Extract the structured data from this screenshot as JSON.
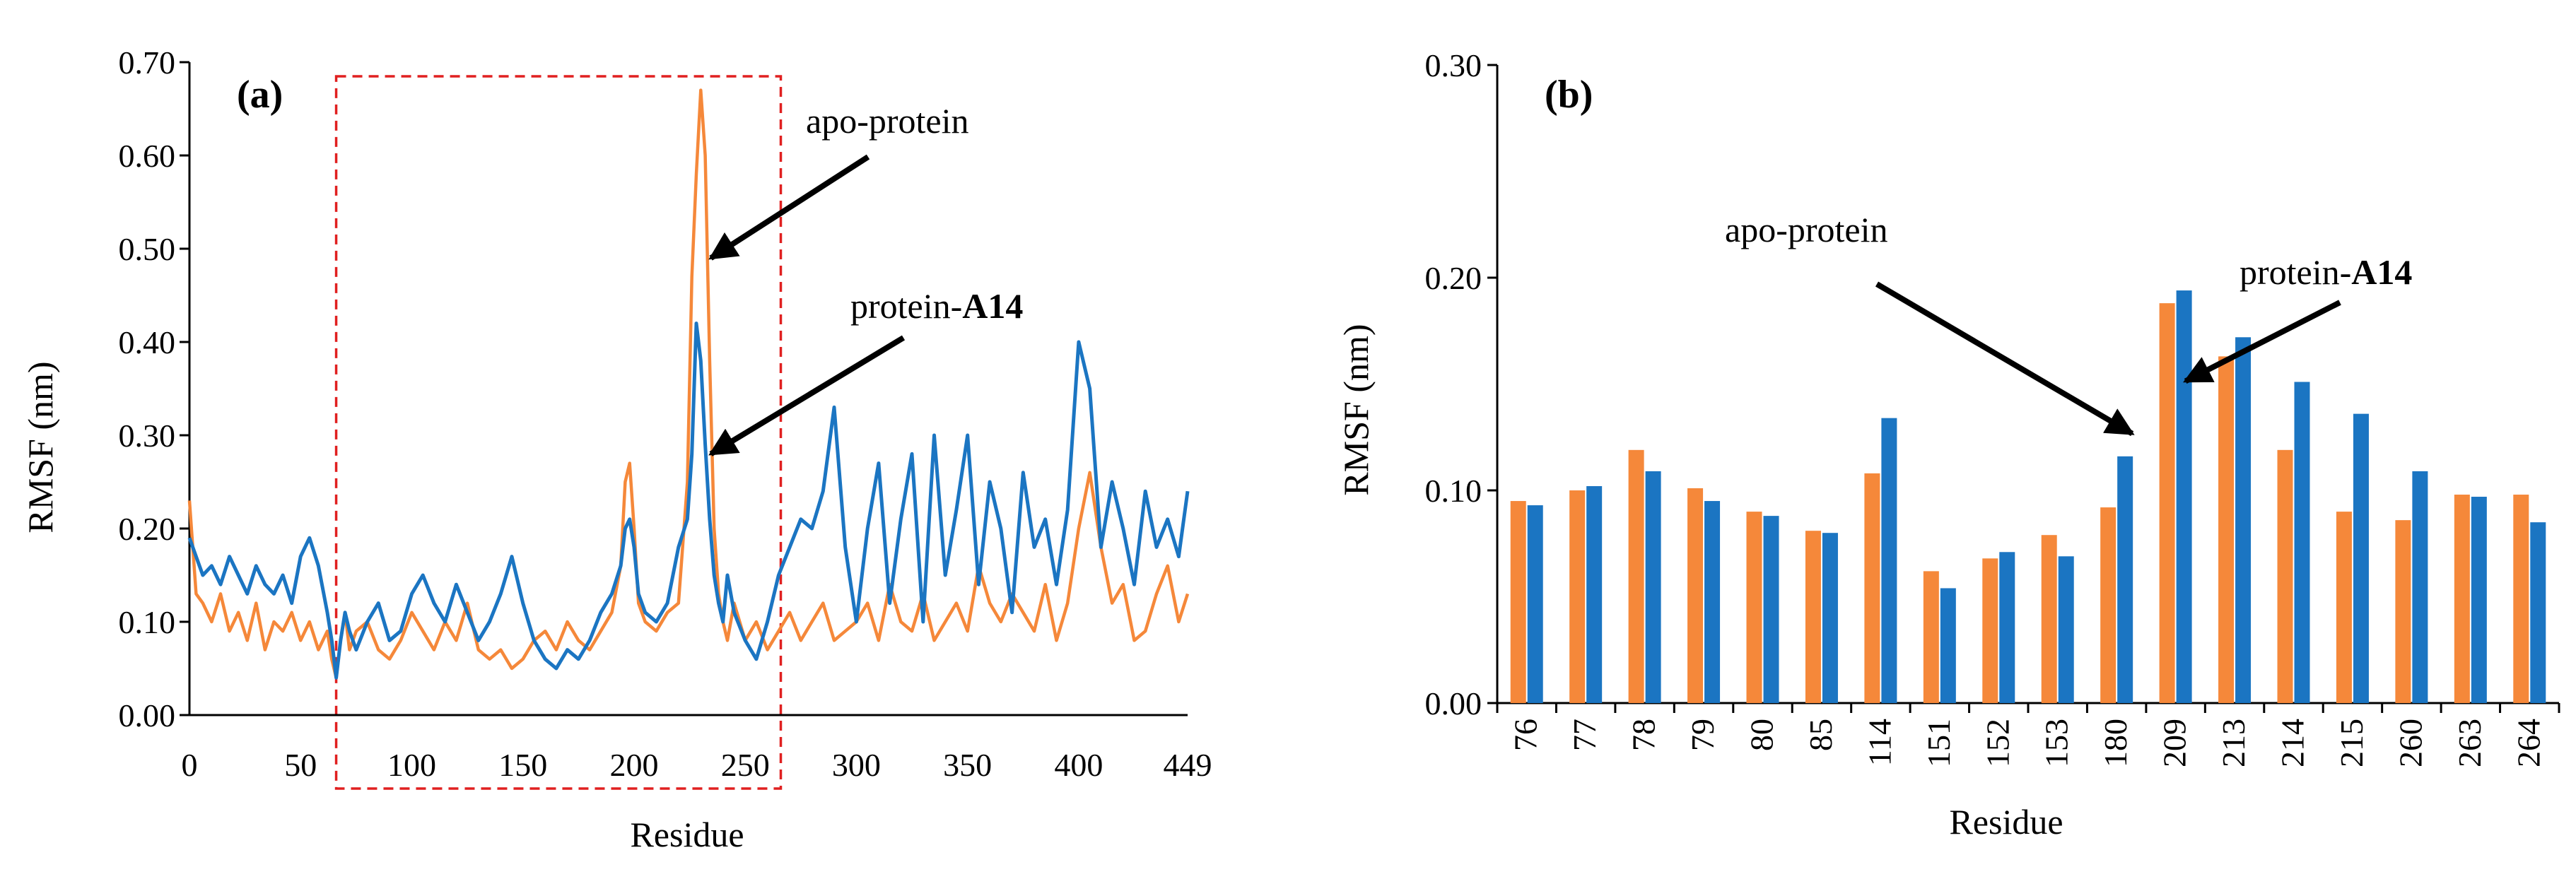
{
  "colors": {
    "apo": "#F5883A",
    "a14": "#1B75C2",
    "highlight": "#E02020",
    "axis": "#000000"
  },
  "chart_data": [
    {
      "type": "line",
      "panel_label": "(a)",
      "xlabel": "Residue",
      "ylabel": "RMSF (nm)",
      "xlim": [
        0,
        449
      ],
      "ylim": [
        0,
        0.7
      ],
      "x_ticks": [
        0,
        50,
        100,
        150,
        200,
        250,
        300,
        350,
        400,
        449
      ],
      "y_ticks": [
        "0.00",
        "0.10",
        "0.20",
        "0.30",
        "0.40",
        "0.50",
        "0.60",
        "0.70"
      ],
      "highlight_range": [
        66,
        266
      ],
      "series": [
        {
          "name": "apo-protein",
          "color_key": "apo",
          "x": [
            0,
            3,
            6,
            10,
            14,
            18,
            22,
            26,
            30,
            34,
            38,
            42,
            46,
            50,
            54,
            58,
            62,
            64,
            66,
            68,
            70,
            72,
            75,
            80,
            85,
            90,
            95,
            100,
            105,
            110,
            115,
            120,
            125,
            130,
            135,
            140,
            145,
            150,
            155,
            160,
            165,
            170,
            175,
            180,
            185,
            190,
            194,
            196,
            198,
            200,
            202,
            205,
            210,
            215,
            220,
            224,
            226,
            228,
            230,
            232,
            234,
            236,
            238,
            240,
            242,
            245,
            250,
            255,
            260,
            265,
            270,
            275,
            280,
            285,
            290,
            295,
            300,
            305,
            310,
            315,
            320,
            325,
            330,
            335,
            340,
            345,
            350,
            355,
            360,
            365,
            370,
            375,
            380,
            385,
            390,
            395,
            400,
            405,
            410,
            415,
            420,
            425,
            430,
            435,
            440,
            445,
            449
          ],
          "y": [
            0.23,
            0.13,
            0.12,
            0.1,
            0.13,
            0.09,
            0.11,
            0.08,
            0.12,
            0.07,
            0.1,
            0.09,
            0.11,
            0.08,
            0.1,
            0.07,
            0.09,
            0.06,
            0.04,
            0.08,
            0.11,
            0.07,
            0.09,
            0.1,
            0.07,
            0.06,
            0.08,
            0.11,
            0.09,
            0.07,
            0.1,
            0.08,
            0.12,
            0.07,
            0.06,
            0.07,
            0.05,
            0.06,
            0.08,
            0.09,
            0.07,
            0.1,
            0.08,
            0.07,
            0.09,
            0.11,
            0.16,
            0.25,
            0.27,
            0.2,
            0.12,
            0.1,
            0.09,
            0.11,
            0.12,
            0.25,
            0.47,
            0.58,
            0.67,
            0.6,
            0.38,
            0.2,
            0.13,
            0.1,
            0.08,
            0.12,
            0.08,
            0.1,
            0.07,
            0.09,
            0.11,
            0.08,
            0.1,
            0.12,
            0.08,
            0.09,
            0.1,
            0.12,
            0.08,
            0.14,
            0.1,
            0.09,
            0.13,
            0.08,
            0.1,
            0.12,
            0.09,
            0.16,
            0.12,
            0.1,
            0.13,
            0.11,
            0.09,
            0.14,
            0.08,
            0.12,
            0.2,
            0.26,
            0.18,
            0.12,
            0.14,
            0.08,
            0.09,
            0.13,
            0.16,
            0.1,
            0.13
          ]
        },
        {
          "name": "protein-A14",
          "color_key": "a14",
          "x": [
            0,
            3,
            6,
            10,
            14,
            18,
            22,
            26,
            30,
            34,
            38,
            42,
            46,
            50,
            54,
            58,
            62,
            64,
            66,
            68,
            70,
            72,
            75,
            80,
            85,
            90,
            95,
            100,
            105,
            110,
            115,
            120,
            125,
            130,
            135,
            140,
            145,
            150,
            155,
            160,
            165,
            170,
            175,
            180,
            185,
            190,
            194,
            196,
            198,
            200,
            202,
            205,
            210,
            215,
            220,
            224,
            226,
            228,
            230,
            232,
            234,
            236,
            238,
            240,
            242,
            245,
            250,
            255,
            260,
            265,
            270,
            275,
            280,
            285,
            290,
            295,
            300,
            305,
            310,
            315,
            320,
            325,
            330,
            335,
            340,
            345,
            350,
            355,
            360,
            365,
            370,
            375,
            380,
            385,
            390,
            395,
            400,
            405,
            410,
            415,
            420,
            425,
            430,
            435,
            440,
            445,
            449
          ],
          "y": [
            0.19,
            0.17,
            0.15,
            0.16,
            0.14,
            0.17,
            0.15,
            0.13,
            0.16,
            0.14,
            0.13,
            0.15,
            0.12,
            0.17,
            0.19,
            0.16,
            0.11,
            0.08,
            0.04,
            0.08,
            0.11,
            0.09,
            0.07,
            0.1,
            0.12,
            0.08,
            0.09,
            0.13,
            0.15,
            0.12,
            0.1,
            0.14,
            0.11,
            0.08,
            0.1,
            0.13,
            0.17,
            0.12,
            0.08,
            0.06,
            0.05,
            0.07,
            0.06,
            0.08,
            0.11,
            0.13,
            0.16,
            0.2,
            0.21,
            0.18,
            0.13,
            0.11,
            0.1,
            0.12,
            0.18,
            0.21,
            0.28,
            0.42,
            0.38,
            0.29,
            0.21,
            0.15,
            0.12,
            0.1,
            0.15,
            0.11,
            0.08,
            0.06,
            0.1,
            0.15,
            0.18,
            0.21,
            0.2,
            0.24,
            0.33,
            0.18,
            0.1,
            0.2,
            0.27,
            0.12,
            0.21,
            0.28,
            0.1,
            0.3,
            0.15,
            0.22,
            0.3,
            0.14,
            0.25,
            0.2,
            0.11,
            0.26,
            0.18,
            0.21,
            0.14,
            0.22,
            0.4,
            0.35,
            0.18,
            0.25,
            0.2,
            0.14,
            0.24,
            0.18,
            0.21,
            0.17,
            0.24
          ]
        }
      ],
      "annotations": [
        {
          "text": "apo-protein",
          "points_to": [
            232,
            0.49
          ]
        },
        {
          "text_plain": "protein-",
          "text_bold": "A14",
          "points_to": [
            232,
            0.28
          ]
        }
      ]
    },
    {
      "type": "bar",
      "panel_label": "(b)",
      "xlabel": "Residue",
      "ylabel": "RMSF (nm)",
      "ylim": [
        0,
        0.3
      ],
      "y_ticks": [
        "0.00",
        "0.10",
        "0.20",
        "0.30"
      ],
      "categories": [
        "76",
        "77",
        "78",
        "79",
        "80",
        "85",
        "114",
        "151",
        "152",
        "153",
        "180",
        "209",
        "213",
        "214",
        "215",
        "260",
        "263",
        "264"
      ],
      "series": [
        {
          "name": "apo-protein",
          "color_key": "apo",
          "values": [
            0.095,
            0.1,
            0.119,
            0.101,
            0.09,
            0.081,
            0.108,
            0.062,
            0.068,
            0.079,
            0.092,
            0.188,
            0.163,
            0.119,
            0.09,
            0.086,
            0.098,
            0.098
          ]
        },
        {
          "name": "protein-A14",
          "color_key": "a14",
          "values": [
            0.093,
            0.102,
            0.109,
            0.095,
            0.088,
            0.08,
            0.134,
            0.054,
            0.071,
            0.069,
            0.116,
            0.194,
            0.172,
            0.151,
            0.136,
            0.109,
            0.097,
            0.085
          ]
        }
      ],
      "annotations": [
        {
          "text": "apo-protein",
          "points_to_category": "180",
          "points_to_value": 0.13
        },
        {
          "text_plain": "protein-",
          "text_bold": "A14",
          "points_to_category": "209",
          "points_to_value": 0.16
        }
      ]
    }
  ]
}
